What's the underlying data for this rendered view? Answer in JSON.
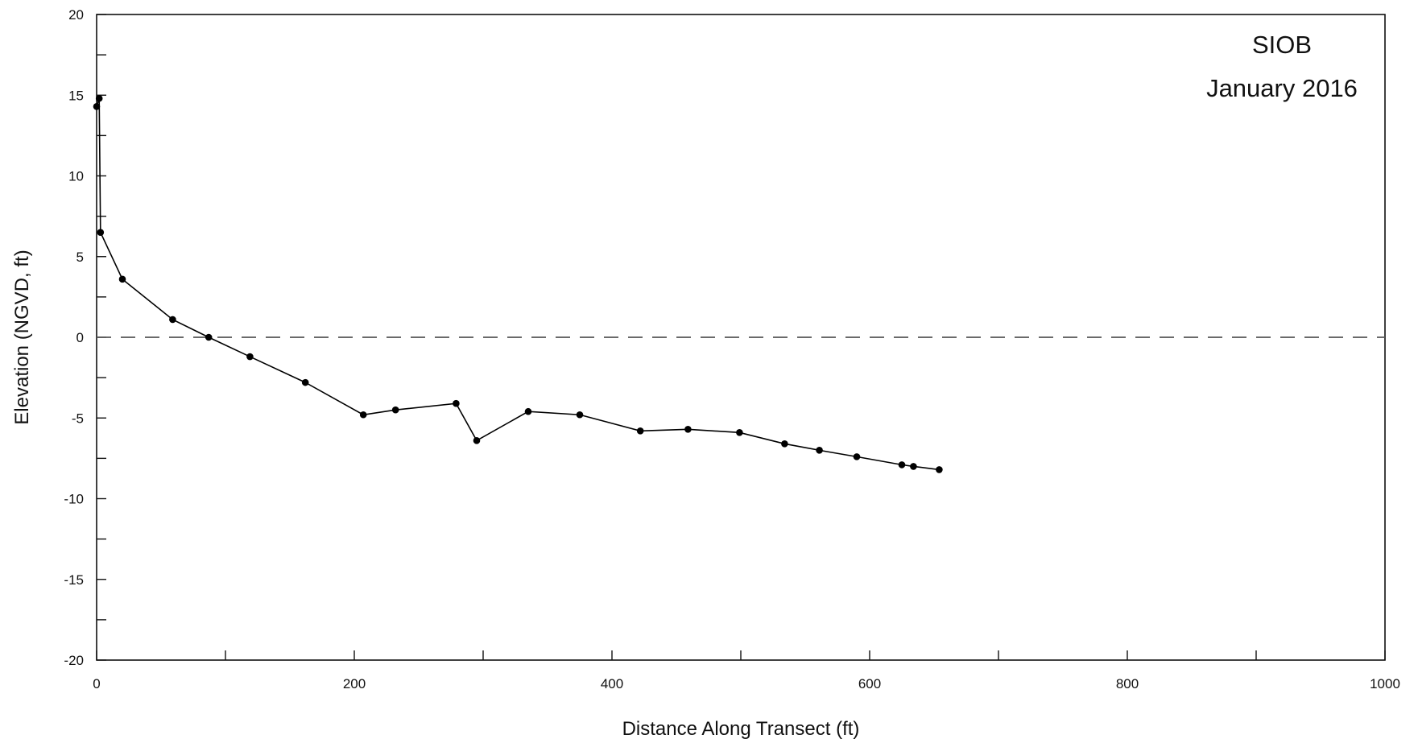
{
  "chart_data": {
    "type": "line",
    "title": "",
    "annotations": [
      "SIOB",
      "January 2016"
    ],
    "xlabel": "Distance Along Transect (ft)",
    "ylabel": "Elevation (NGVD, ft)",
    "xlim": [
      0,
      1000
    ],
    "ylim": [
      -20,
      20
    ],
    "x_ticks": [
      0,
      200,
      400,
      600,
      800,
      1000
    ],
    "y_ticks": [
      -20,
      -15,
      -10,
      -5,
      0,
      5,
      10,
      15,
      20
    ],
    "grid": false,
    "legend": "none",
    "reference_line": {
      "y": 0,
      "style": "dashed"
    },
    "series": [
      {
        "marker": "circle",
        "color": "#000000",
        "x": [
          0,
          2,
          3,
          20,
          59,
          87,
          119,
          162,
          207,
          232,
          279,
          295,
          335,
          375,
          422,
          459,
          499,
          534,
          561,
          590,
          625,
          634,
          654
        ],
        "y": [
          14.3,
          14.8,
          6.5,
          3.6,
          1.1,
          0.0,
          -1.2,
          -2.8,
          -4.8,
          -4.5,
          -4.1,
          -6.4,
          -4.6,
          -4.8,
          -5.8,
          -5.7,
          -5.9,
          -6.6,
          -7.0,
          -7.4,
          -7.9,
          -8.0,
          -8.2
        ]
      }
    ]
  }
}
